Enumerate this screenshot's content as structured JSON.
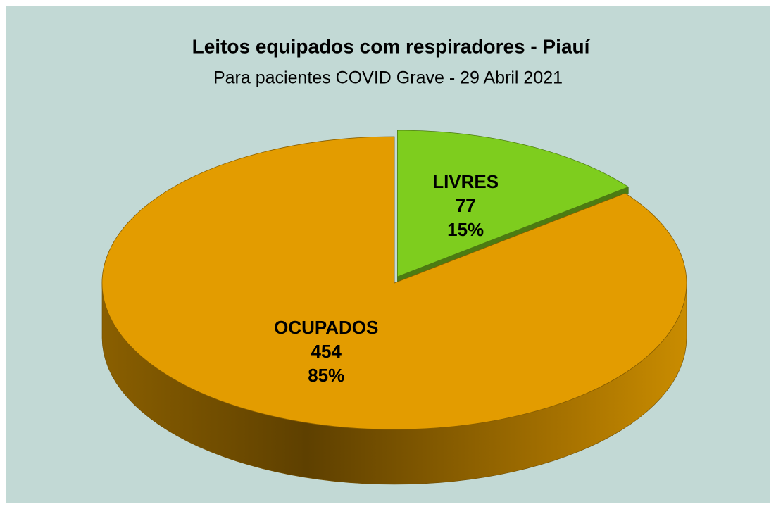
{
  "chart_data": {
    "type": "pie3d",
    "title": "Leitos equipados com respiradores - Piauí",
    "subtitle": "Para pacientes COVID Grave - 29 Abril 2021",
    "categories": [
      "LIVRES",
      "OCUPADOS"
    ],
    "values": [
      77,
      454
    ],
    "percent_labels": [
      "15%",
      "85%"
    ],
    "colors": [
      "#7ecd1e",
      "#e39c00"
    ],
    "exploded": [
      "LIVRES"
    ]
  }
}
